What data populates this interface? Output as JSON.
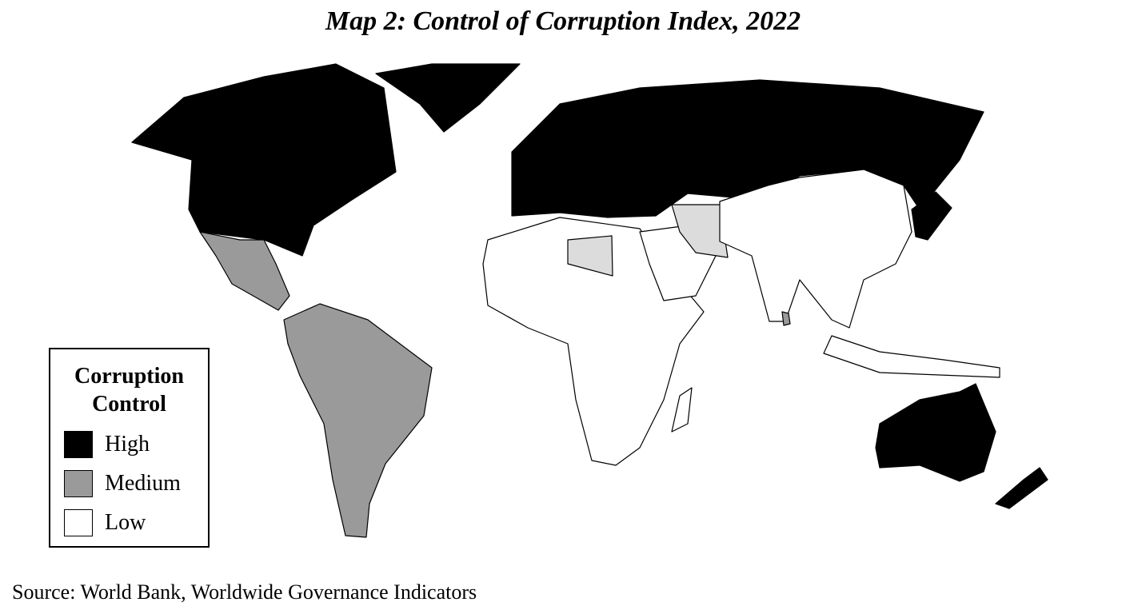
{
  "title": "Map 2: Control of Corruption Index, 2022",
  "legend": {
    "title": "Corruption Control",
    "items": [
      {
        "label": "High",
        "color": "#000000"
      },
      {
        "label": "Medium",
        "color": "#9a9a9a"
      },
      {
        "label": "Low",
        "color": "#ffffff"
      }
    ]
  },
  "source": "Source: World Bank, Worldwide Governance Indicators"
}
